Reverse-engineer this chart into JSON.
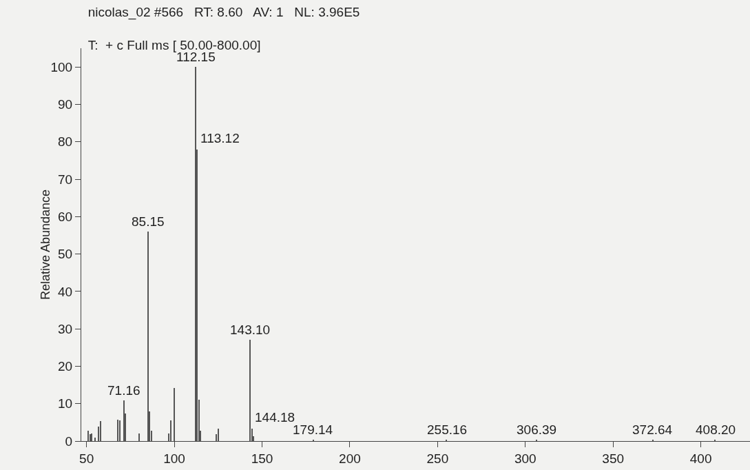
{
  "chart_data": {
    "type": "bar",
    "title": "nicolas_02 #566   RT: 8.60   AV: 1   NL: 3.96E5",
    "subtitle": "T:  + c Full ms [ 50.00-800.00]",
    "ylabel": "Relative Abundance",
    "color": "#555555",
    "x": [
      51,
      52,
      53,
      55,
      57,
      58,
      68,
      69,
      71.16,
      72,
      80,
      85.15,
      86,
      87,
      97,
      98,
      100,
      112.15,
      113.12,
      114,
      115,
      124,
      125,
      143.1,
      144.18,
      145,
      179.14,
      255.16,
      306.39,
      372.64,
      408.2
    ],
    "values": [
      2.7,
      1.8,
      2,
      1,
      3.8,
      5.3,
      5.8,
      5.6,
      10.8,
      7.4,
      2,
      56,
      8,
      2.7,
      2,
      5.6,
      14.2,
      100,
      78,
      11,
      2.7,
      1.8,
      3.3,
      27,
      3.4,
      1.2,
      0.3,
      0.3,
      0.3,
      0.3,
      0.3
    ],
    "xlim": [
      47,
      428
    ],
    "xticks": [
      50,
      100,
      150,
      200,
      250,
      300,
      350,
      400
    ],
    "ylim": [
      0,
      105
    ],
    "yticks": [
      0,
      10,
      20,
      30,
      40,
      50,
      60,
      70,
      80,
      90,
      100
    ],
    "grid": false,
    "legend": false,
    "annotations": [
      {
        "text": "112.15",
        "x": 112.15,
        "y": 100
      },
      {
        "text": "113.12",
        "x": 113.12,
        "y": 78
      },
      {
        "text": "85.15",
        "x": 85.15,
        "y": 56
      },
      {
        "text": "143.10",
        "x": 143.1,
        "y": 27
      },
      {
        "text": "71.16",
        "x": 71.16,
        "y": 10.8
      },
      {
        "text": "144.18",
        "x": 144.18,
        "y": 3.4
      },
      {
        "text": "179.14",
        "x": 179.14,
        "y": 0.3
      },
      {
        "text": "255.16",
        "x": 255.16,
        "y": 0.3
      },
      {
        "text": "306.39",
        "x": 306.39,
        "y": 0.3
      },
      {
        "text": "372.64",
        "x": 372.64,
        "y": 0.3
      },
      {
        "text": "408.20",
        "x": 408.2,
        "y": 0.3
      }
    ]
  }
}
